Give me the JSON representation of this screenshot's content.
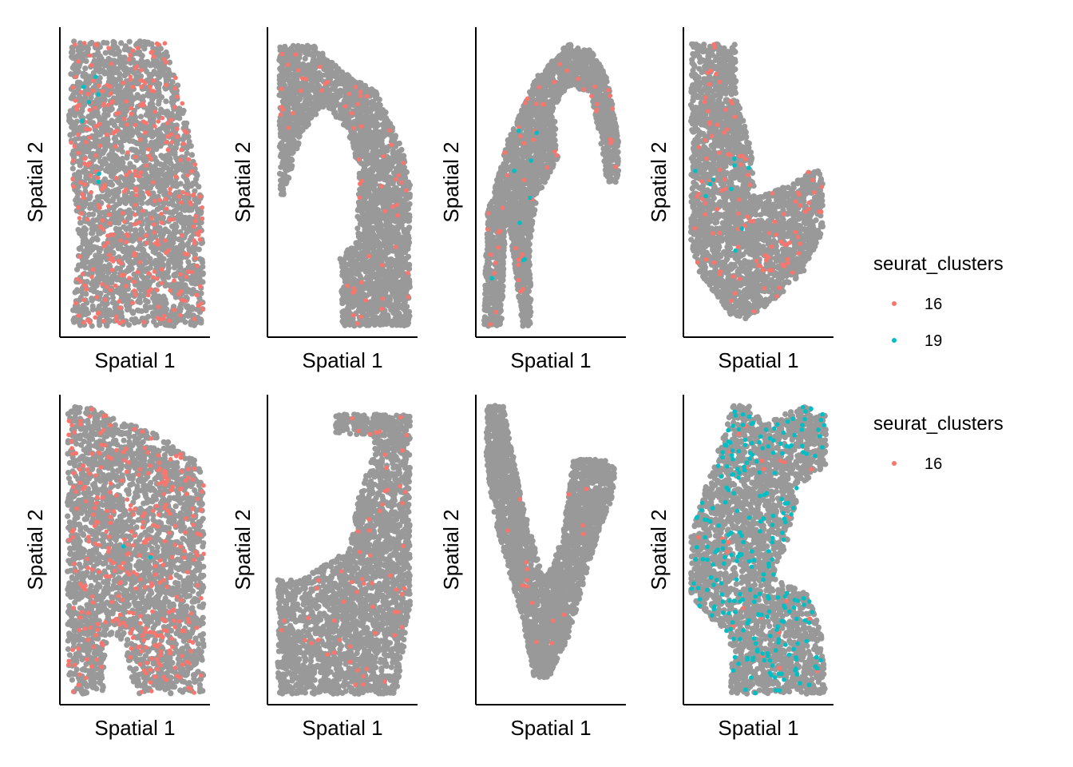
{
  "colors": {
    "background_spots": "#999999",
    "cluster_16": "#F8766D",
    "cluster_19": "#00BFC4",
    "axis_line": "#000000"
  },
  "chart_data": {
    "type": "scatter",
    "grid": false,
    "x_axis_label": "Spatial 1",
    "y_axis_label": "Spatial 2",
    "legends": [
      {
        "row": 1,
        "title": "seurat_clusters",
        "entries": [
          {
            "label": "16",
            "color": "#F8766D"
          },
          {
            "label": "19",
            "color": "#00BFC4"
          }
        ]
      },
      {
        "row": 2,
        "title": "seurat_clusters",
        "entries": [
          {
            "label": "16",
            "color": "#F8766D"
          }
        ]
      }
    ],
    "panels": [
      {
        "row": 1,
        "col": 1,
        "xlabel": "Spatial 1",
        "ylabel": "Spatial 2",
        "shape": "tall-rectangle",
        "n_cluster16": 320,
        "n_cluster19": 8
      },
      {
        "row": 1,
        "col": 2,
        "xlabel": "Spatial 1",
        "ylabel": "Spatial 2",
        "shape": "arch",
        "n_cluster16": 60,
        "n_cluster19": 0
      },
      {
        "row": 1,
        "col": 3,
        "xlabel": "Spatial 1",
        "ylabel": "Spatial 2",
        "shape": "inverted-v",
        "n_cluster16": 55,
        "n_cluster19": 9
      },
      {
        "row": 1,
        "col": 4,
        "xlabel": "Spatial 1",
        "ylabel": "Spatial 2",
        "shape": "hook",
        "n_cluster16": 110,
        "n_cluster19": 10
      },
      {
        "row": 2,
        "col": 1,
        "xlabel": "Spatial 1",
        "ylabel": "Spatial 2",
        "shape": "dome-with-notch",
        "n_cluster16": 330,
        "n_cluster19": 2
      },
      {
        "row": 2,
        "col": 2,
        "xlabel": "Spatial 1",
        "ylabel": "Spatial 2",
        "shape": "l-shape",
        "n_cluster16": 60,
        "n_cluster19": 0
      },
      {
        "row": 2,
        "col": 3,
        "xlabel": "Spatial 1",
        "ylabel": "Spatial 2",
        "shape": "v-shape",
        "n_cluster16": 16,
        "n_cluster19": 0
      },
      {
        "row": 2,
        "col": 4,
        "xlabel": "Spatial 1",
        "ylabel": "Spatial 2",
        "shape": "branched",
        "n_cluster16": 25,
        "n_cluster19": 260
      }
    ]
  }
}
